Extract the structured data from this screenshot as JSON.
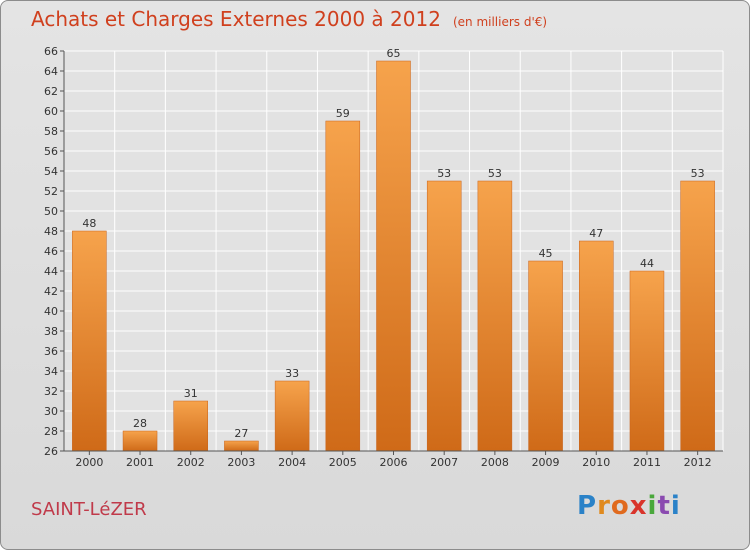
{
  "header": {
    "title": "Achats et Charges Externes 2000 à 2012",
    "unit": "(en milliers d'€)"
  },
  "footer": {
    "place": "SAINT-LéZER",
    "logo_letters": [
      "P",
      "r",
      "o",
      "x",
      "i",
      "t",
      "i"
    ]
  },
  "colors": {
    "bar_top": "#f6a34c",
    "bar_bottom": "#cf6a18",
    "title": "#d0401e",
    "place": "#c03a4a"
  },
  "chart_data": {
    "type": "bar",
    "title": "Achats et Charges Externes 2000 à 2012",
    "subtitle": "(en milliers d'€)",
    "xlabel": "",
    "ylabel": "",
    "categories": [
      "2000",
      "2001",
      "2002",
      "2003",
      "2004",
      "2005",
      "2006",
      "2007",
      "2008",
      "2009",
      "2010",
      "2011",
      "2012"
    ],
    "values": [
      48,
      28,
      31,
      27,
      33,
      59,
      65,
      53,
      53,
      45,
      47,
      44,
      53
    ],
    "ylim": [
      26,
      66
    ],
    "yticks": [
      26,
      28,
      30,
      32,
      34,
      36,
      38,
      40,
      42,
      44,
      46,
      48,
      50,
      52,
      54,
      56,
      58,
      60,
      62,
      64,
      66
    ],
    "grid": true,
    "data_labels": true
  }
}
